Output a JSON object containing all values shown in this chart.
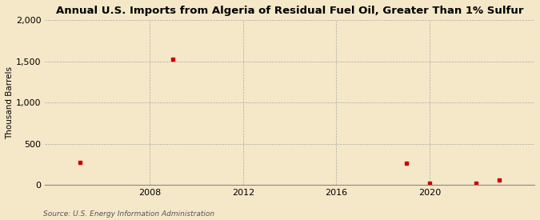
{
  "title": "Annual U.S. Imports from Algeria of Residual Fuel Oil, Greater Than 1% Sulfur",
  "ylabel": "Thousand Barrels",
  "source": "Source: U.S. Energy Information Administration",
  "background_color": "#f5e8c8",
  "plot_background_color": "#f5e8c8",
  "data_color": "#cc0000",
  "xlim": [
    2003.5,
    2024.5
  ],
  "ylim": [
    0,
    2000
  ],
  "yticks": [
    0,
    500,
    1000,
    1500,
    2000
  ],
  "xticks": [
    2008,
    2012,
    2016,
    2020
  ],
  "data_x": [
    2005,
    2009,
    2019,
    2020,
    2022,
    2023
  ],
  "data_y": [
    270,
    1530,
    260,
    20,
    20,
    60
  ],
  "marker": "s",
  "marker_size": 3.5,
  "title_fontsize": 9.5,
  "label_fontsize": 7.5,
  "tick_fontsize": 8,
  "source_fontsize": 6.5
}
